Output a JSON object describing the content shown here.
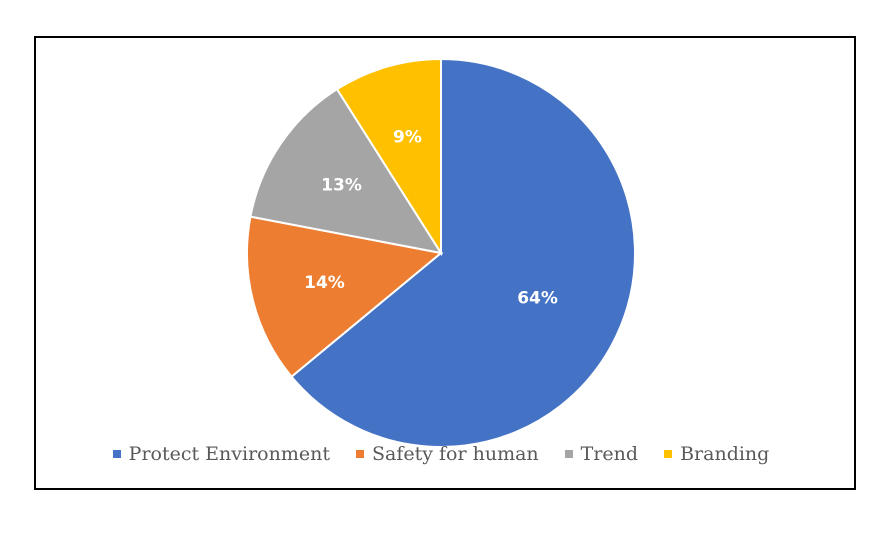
{
  "chart_data": {
    "type": "pie",
    "title": "",
    "categories": [
      "Protect Environment",
      "Safety for human",
      "Trend",
      "Branding"
    ],
    "values": [
      64,
      14,
      13,
      9
    ],
    "data_labels": [
      "64%",
      "14%",
      "13%",
      "9%"
    ],
    "colors": [
      "#4472C4",
      "#ED7D31",
      "#A5A5A5",
      "#FFC000"
    ],
    "start": "12 o'clock",
    "direction": "clockwise",
    "legend_placement": "bottom",
    "label_color": "#ffffff"
  },
  "legend": {
    "items": [
      {
        "label": "Protect Environment",
        "color": "#4472C4"
      },
      {
        "label": "Safety for human",
        "color": "#ED7D31"
      },
      {
        "label": "Trend",
        "color": "#A5A5A5"
      },
      {
        "label": "Branding",
        "color": "#FFC000"
      }
    ]
  }
}
